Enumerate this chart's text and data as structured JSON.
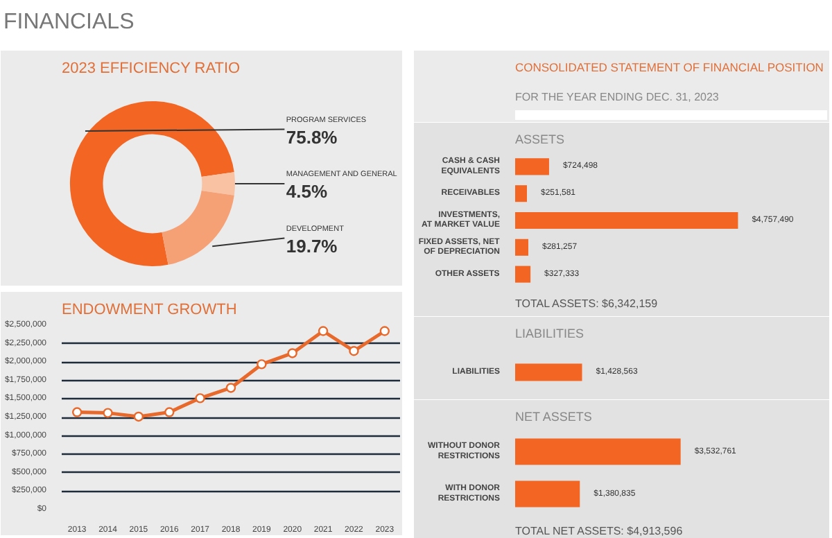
{
  "chart_data": [
    {
      "type": "other",
      "title": "FINANCIALS"
    },
    {
      "type": "donut",
      "title": "2023 EFFICIENCY RATIO",
      "categories": [
        "PROGRAM SERVICES",
        "MANAGEMENT AND GENERAL",
        "DEVELOPMENT"
      ],
      "values": [
        75.8,
        4.5,
        19.7
      ],
      "colors": [
        "#f26522",
        "#f9c3a3",
        "#f5a175"
      ],
      "value_labels": [
        "75.8%",
        "4.5%",
        "19.7%"
      ]
    },
    {
      "type": "line",
      "title": "ENDOWMENT GROWTH",
      "categories": [
        "2013",
        "2014",
        "2015",
        "2016",
        "2017",
        "2018",
        "2019",
        "2020",
        "2021",
        "2022",
        "2023"
      ],
      "series": [
        {
          "color": "#e8692c",
          "values": [
            1320000,
            1310000,
            1260000,
            1320000,
            1510000,
            1650000,
            1970000,
            2120000,
            2420000,
            2150000,
            2420000
          ]
        }
      ],
      "ylim": [
        0,
        2500000
      ],
      "yticks": [
        {
          "value": 0,
          "label": "$0"
        },
        {
          "value": 250000,
          "label": "$250,000"
        },
        {
          "value": 500000,
          "label": "$500,000"
        },
        {
          "value": 750000,
          "label": "$750,000"
        },
        {
          "value": 1000000,
          "label": "$1,000,000"
        },
        {
          "value": 1250000,
          "label": "$1,250,000"
        },
        {
          "value": 1500000,
          "label": "$1,500,000"
        },
        {
          "value": 1750000,
          "label": "$1,750,000"
        },
        {
          "value": 2000000,
          "label": "$2,000,000"
        },
        {
          "value": 2250000,
          "label": "$2,250,000"
        },
        {
          "value": 2500000,
          "label": "$2,500,000"
        }
      ],
      "grid": "y",
      "marker": "circle"
    },
    {
      "type": "other",
      "title": "CONSOLIDATED STATEMENT OF FINANCIAL POSITION",
      "subtitle": "FOR THE YEAR ENDING DEC. 31, 2023"
    },
    {
      "type": "bar",
      "orientation": "horizontal",
      "title": "ASSETS",
      "categories": [
        "CASH & CASH EQUIVALENTS",
        "RECEIVABLES",
        "INVESTMENTS, AT MARKET VALUE",
        "FIXED ASSETS, NET OF DEPRECIATION",
        "OTHER ASSETS"
      ],
      "values": [
        724498,
        251581,
        4757490,
        281257,
        327333
      ],
      "color": "#f26522",
      "value_labels": [
        "$724,498",
        "$251,581",
        "$4,757,490",
        "$281,257",
        "$327,333"
      ],
      "annotations": [
        "TOTAL ASSETS: $6,342,159"
      ]
    },
    {
      "type": "bar",
      "orientation": "horizontal",
      "title": "LIABILITIES",
      "categories": [
        "LIABILITIES"
      ],
      "values": [
        1428563
      ],
      "color": "#f26522",
      "value_labels": [
        "$1,428,563"
      ]
    },
    {
      "type": "bar",
      "orientation": "horizontal",
      "title": "NET ASSETS",
      "categories": [
        "WITHOUT DONOR RESTRICTIONS",
        "WITH DONOR RESTRICTIONS"
      ],
      "values": [
        3532761,
        1380835
      ],
      "color": "#f26522",
      "value_labels": [
        "$3,532,761",
        "$1,380,835"
      ],
      "annotations": [
        "TOTAL NET ASSETS: $4,913,596"
      ]
    }
  ]
}
